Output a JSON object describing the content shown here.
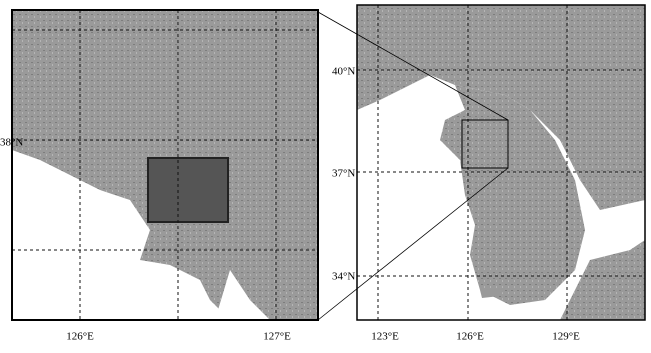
{
  "left_panel": {
    "lat_labels": [
      "38°N"
    ],
    "lon_labels": [
      "126°E",
      "127°E"
    ]
  },
  "right_panel": {
    "lat_labels": [
      "40°N",
      "37°N",
      "34°N"
    ],
    "lon_labels": [
      "123°E",
      "126°E",
      "129°E"
    ]
  }
}
